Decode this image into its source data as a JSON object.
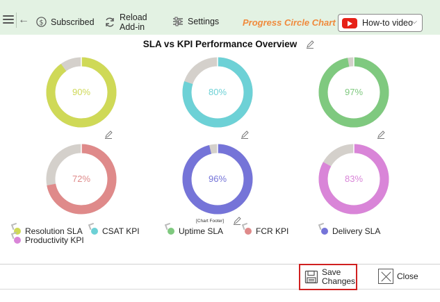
{
  "toolbar": {
    "subscribed_label": "Subscribed",
    "reload_label_1": "Reload",
    "reload_label_2": "Add-in",
    "settings_label": "Settings",
    "app_title": "Progress Circle Chart",
    "howto_label": "How-to video"
  },
  "chart_data": {
    "type": "progress-circle",
    "title": "SLA vs KPI Performance Overview",
    "footer": "[Chart Footer]",
    "remainder_color": "#d4d0cb",
    "series": [
      {
        "name": "Resolution SLA",
        "value": 90,
        "label": "90%",
        "color": "#cfd957"
      },
      {
        "name": "CSAT KPI",
        "value": 80,
        "label": "80%",
        "color": "#6dd1d6"
      },
      {
        "name": "Uptime SLA",
        "value": 97,
        "label": "97%",
        "color": "#7fc97f"
      },
      {
        "name": "FCR KPI",
        "value": 72,
        "label": "72%",
        "color": "#df8a8a"
      },
      {
        "name": "Delivery SLA",
        "value": 96,
        "label": "96%",
        "color": "#7574d8"
      },
      {
        "name": "Productivity KPI",
        "value": 83,
        "label": "83%",
        "color": "#d985d8"
      }
    ]
  },
  "actions": {
    "save_label_1": "Save",
    "save_label_2": "Changes",
    "close_label": "Close"
  }
}
